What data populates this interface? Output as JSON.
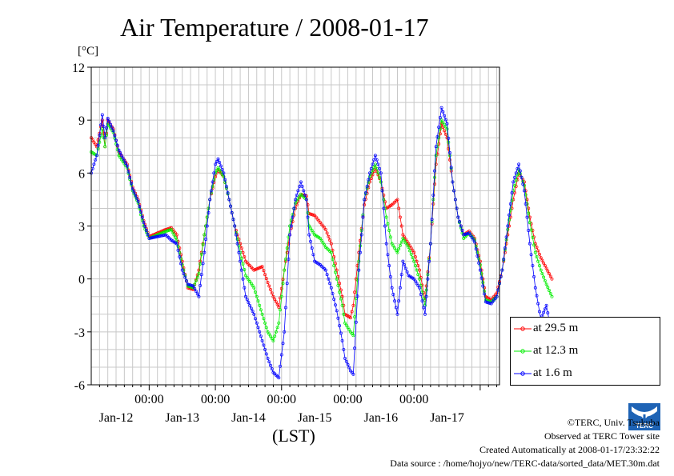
{
  "title": "Air Temperature / 2008-01-17",
  "unit_label": "[°C]",
  "xaxis_title": "(LST)",
  "credits": {
    "copyright": "©TERC, Univ. Tsukuba",
    "observed": "Observed at TERC Tower site",
    "created": "Created Automatically at 2008-01-17/23:32:22",
    "source": "Data source : /home/hojyo/new/TERC-data/sorted_data/MET.30m.dat"
  },
  "logo": {
    "icon": "terc-logo-icon",
    "text": "TERC"
  },
  "chart_data": {
    "type": "line",
    "title": "Air Temperature / 2008-01-17",
    "ylabel": "[°C]",
    "xlabel": "(LST)",
    "ylim": [
      -6,
      12
    ],
    "yticks": [
      -6,
      -3,
      0,
      3,
      6,
      9,
      12
    ],
    "xlim_hours": [
      -21,
      127
    ],
    "time_ticks": [
      "00:00",
      "00:00",
      "00:00",
      "00:00",
      "00:00"
    ],
    "day_labels": [
      "Jan-12",
      "Jan-13",
      "Jan-14",
      "Jan-15",
      "Jan-16",
      "Jan-17"
    ],
    "grid": true,
    "legend_position": "right",
    "series": [
      {
        "name": "at 29.5 m",
        "color": "#ff0000",
        "points": [
          [
            -21,
            8.0
          ],
          [
            -19,
            7.5
          ],
          [
            -17,
            9.0
          ],
          [
            -16,
            7.5
          ],
          [
            -15,
            9.0
          ],
          [
            -13,
            8.5
          ],
          [
            -11,
            7.2
          ],
          [
            -8,
            6.5
          ],
          [
            -6,
            5.2
          ],
          [
            -4,
            4.5
          ],
          [
            -2,
            3.3
          ],
          [
            0,
            2.4
          ],
          [
            3,
            2.6
          ],
          [
            6,
            2.8
          ],
          [
            8,
            2.9
          ],
          [
            10,
            2.5
          ],
          [
            12,
            1.0
          ],
          [
            14,
            -0.5
          ],
          [
            16,
            -0.6
          ],
          [
            18,
            0.5
          ],
          [
            20,
            2.5
          ],
          [
            22,
            4.5
          ],
          [
            24,
            5.8
          ],
          [
            25,
            6.2
          ],
          [
            27,
            5.8
          ],
          [
            29,
            4.5
          ],
          [
            31,
            3.0
          ],
          [
            33,
            2.0
          ],
          [
            35,
            1.0
          ],
          [
            38,
            0.5
          ],
          [
            41,
            0.7
          ],
          [
            43,
            -0.2
          ],
          [
            45,
            -1.0
          ],
          [
            47,
            -1.6
          ],
          [
            49,
            0.5
          ],
          [
            51,
            2.5
          ],
          [
            53,
            4.0
          ],
          [
            55,
            4.8
          ],
          [
            57,
            4.7
          ],
          [
            58,
            3.7
          ],
          [
            60,
            3.6
          ],
          [
            62,
            3.2
          ],
          [
            64,
            2.8
          ],
          [
            66,
            2.0
          ],
          [
            68,
            0.5
          ],
          [
            70,
            -1.0
          ],
          [
            71,
            -2.0
          ],
          [
            73,
            -2.2
          ],
          [
            74,
            -1.5
          ],
          [
            76,
            1.5
          ],
          [
            78,
            4.2
          ],
          [
            80,
            5.5
          ],
          [
            82,
            6.3
          ],
          [
            84,
            5.5
          ],
          [
            86,
            4.0
          ],
          [
            88,
            4.2
          ],
          [
            90,
            4.5
          ],
          [
            92,
            2.5
          ],
          [
            94,
            2.0
          ],
          [
            96,
            1.5
          ],
          [
            98,
            0.5
          ],
          [
            100,
            -1.2
          ],
          [
            102,
            2.0
          ],
          [
            104,
            6.5
          ],
          [
            106,
            8.8
          ],
          [
            108,
            8.0
          ],
          [
            110,
            5.5
          ],
          [
            112,
            3.5
          ],
          [
            114,
            2.5
          ],
          [
            116,
            2.7
          ],
          [
            118,
            2.3
          ],
          [
            120,
            1.0
          ],
          [
            122,
            -1.0
          ],
          [
            124,
            -1.2
          ],
          [
            126,
            -0.8
          ],
          [
            128,
            0.5
          ],
          [
            130,
            2.5
          ],
          [
            132,
            4.5
          ],
          [
            134,
            6.0
          ],
          [
            136,
            5.5
          ],
          [
            138,
            3.5
          ],
          [
            140,
            2.0
          ],
          [
            142,
            1.2
          ],
          [
            144,
            0.6
          ],
          [
            146,
            0.0
          ]
        ]
      },
      {
        "name": "at 12.3 m",
        "color": "#00ee00",
        "points": [
          [
            -21,
            7.2
          ],
          [
            -19,
            7.0
          ],
          [
            -17,
            8.5
          ],
          [
            -16,
            7.5
          ],
          [
            -15,
            8.8
          ],
          [
            -13,
            8.3
          ],
          [
            -11,
            7.0
          ],
          [
            -8,
            6.3
          ],
          [
            -6,
            5.0
          ],
          [
            -4,
            4.3
          ],
          [
            -2,
            3.0
          ],
          [
            0,
            2.3
          ],
          [
            3,
            2.5
          ],
          [
            6,
            2.7
          ],
          [
            8,
            2.8
          ],
          [
            10,
            2.2
          ],
          [
            12,
            0.8
          ],
          [
            14,
            -0.4
          ],
          [
            16,
            -0.5
          ],
          [
            18,
            0.3
          ],
          [
            20,
            2.5
          ],
          [
            22,
            4.5
          ],
          [
            24,
            6.0
          ],
          [
            25,
            6.3
          ],
          [
            27,
            5.8
          ],
          [
            29,
            4.5
          ],
          [
            31,
            3.0
          ],
          [
            33,
            1.5
          ],
          [
            35,
            0.2
          ],
          [
            38,
            -0.5
          ],
          [
            41,
            -2.0
          ],
          [
            43,
            -3.0
          ],
          [
            45,
            -3.5
          ],
          [
            47,
            -2.5
          ],
          [
            49,
            0.5
          ],
          [
            51,
            3.0
          ],
          [
            53,
            4.3
          ],
          [
            55,
            4.8
          ],
          [
            57,
            4.5
          ],
          [
            58,
            3.0
          ],
          [
            60,
            2.5
          ],
          [
            62,
            2.3
          ],
          [
            64,
            1.8
          ],
          [
            66,
            1.5
          ],
          [
            68,
            0.0
          ],
          [
            70,
            -1.5
          ],
          [
            71,
            -2.5
          ],
          [
            73,
            -3.0
          ],
          [
            74,
            -3.2
          ],
          [
            76,
            1.0
          ],
          [
            78,
            4.5
          ],
          [
            80,
            5.8
          ],
          [
            82,
            6.5
          ],
          [
            84,
            5.5
          ],
          [
            86,
            3.5
          ],
          [
            88,
            2.0
          ],
          [
            90,
            1.5
          ],
          [
            92,
            2.3
          ],
          [
            94,
            1.8
          ],
          [
            96,
            1.0
          ],
          [
            98,
            0.0
          ],
          [
            100,
            -1.5
          ],
          [
            102,
            2.0
          ],
          [
            104,
            7.0
          ],
          [
            106,
            9.0
          ],
          [
            108,
            8.5
          ],
          [
            110,
            5.5
          ],
          [
            112,
            3.5
          ],
          [
            114,
            2.3
          ],
          [
            116,
            2.6
          ],
          [
            118,
            2.2
          ],
          [
            120,
            0.8
          ],
          [
            122,
            -1.2
          ],
          [
            124,
            -1.3
          ],
          [
            126,
            -1.0
          ],
          [
            128,
            0.5
          ],
          [
            130,
            2.8
          ],
          [
            132,
            5.0
          ],
          [
            134,
            6.2
          ],
          [
            136,
            5.3
          ],
          [
            138,
            3.2
          ],
          [
            140,
            1.5
          ],
          [
            142,
            0.5
          ],
          [
            144,
            -0.3
          ],
          [
            146,
            -1.0
          ]
        ]
      },
      {
        "name": "at 1.6 m",
        "color": "#0000ff",
        "points": [
          [
            -21,
            6.0
          ],
          [
            -19,
            7.0
          ],
          [
            -17,
            9.3
          ],
          [
            -16,
            8.0
          ],
          [
            -15,
            9.1
          ],
          [
            -13,
            8.4
          ],
          [
            -11,
            7.3
          ],
          [
            -8,
            6.4
          ],
          [
            -6,
            5.1
          ],
          [
            -4,
            4.4
          ],
          [
            -2,
            3.2
          ],
          [
            0,
            2.3
          ],
          [
            3,
            2.4
          ],
          [
            6,
            2.5
          ],
          [
            8,
            2.2
          ],
          [
            10,
            2.0
          ],
          [
            12,
            0.5
          ],
          [
            14,
            -0.3
          ],
          [
            16,
            -0.4
          ],
          [
            18,
            -1.0
          ],
          [
            20,
            1.5
          ],
          [
            22,
            4.5
          ],
          [
            24,
            6.5
          ],
          [
            25,
            6.8
          ],
          [
            27,
            6.0
          ],
          [
            29,
            4.5
          ],
          [
            31,
            3.0
          ],
          [
            33,
            1.0
          ],
          [
            35,
            -1.0
          ],
          [
            38,
            -2.0
          ],
          [
            41,
            -3.5
          ],
          [
            43,
            -4.5
          ],
          [
            45,
            -5.3
          ],
          [
            47,
            -5.6
          ],
          [
            49,
            -3.0
          ],
          [
            51,
            2.5
          ],
          [
            53,
            4.5
          ],
          [
            55,
            5.5
          ],
          [
            57,
            4.5
          ],
          [
            58,
            2.5
          ],
          [
            60,
            1.0
          ],
          [
            62,
            0.8
          ],
          [
            64,
            0.5
          ],
          [
            66,
            -0.5
          ],
          [
            68,
            -1.8
          ],
          [
            70,
            -3.5
          ],
          [
            71,
            -4.5
          ],
          [
            73,
            -5.2
          ],
          [
            74,
            -5.4
          ],
          [
            76,
            0.5
          ],
          [
            78,
            4.5
          ],
          [
            80,
            6.0
          ],
          [
            82,
            7.0
          ],
          [
            84,
            6.0
          ],
          [
            86,
            2.0
          ],
          [
            88,
            -0.5
          ],
          [
            90,
            -2.0
          ],
          [
            92,
            1.0
          ],
          [
            94,
            0.2
          ],
          [
            96,
            0.0
          ],
          [
            98,
            -0.5
          ],
          [
            100,
            -2.0
          ],
          [
            102,
            2.0
          ],
          [
            104,
            7.5
          ],
          [
            106,
            9.7
          ],
          [
            108,
            8.8
          ],
          [
            110,
            5.5
          ],
          [
            112,
            3.5
          ],
          [
            114,
            2.5
          ],
          [
            116,
            2.6
          ],
          [
            118,
            2.1
          ],
          [
            120,
            0.5
          ],
          [
            122,
            -1.3
          ],
          [
            124,
            -1.4
          ],
          [
            126,
            -1.0
          ],
          [
            128,
            0.5
          ],
          [
            130,
            3.0
          ],
          [
            132,
            5.5
          ],
          [
            134,
            6.5
          ],
          [
            136,
            5.0
          ],
          [
            138,
            2.0
          ],
          [
            140,
            -0.5
          ],
          [
            142,
            -2.3
          ],
          [
            144,
            -1.5
          ],
          [
            146,
            -3.2
          ]
        ]
      }
    ]
  }
}
